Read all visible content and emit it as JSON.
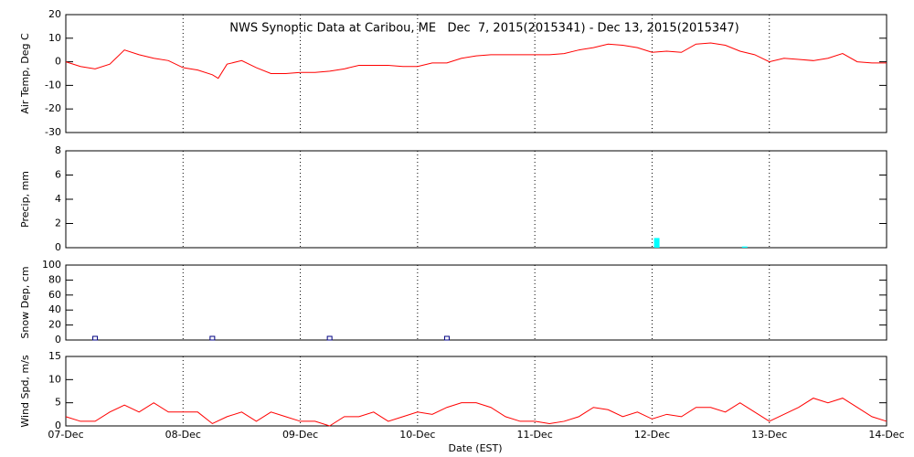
{
  "chart_data": [
    {
      "type": "line",
      "title": "NWS Synoptic Data at Caribou, ME   Dec  7, 2015(2015341) - Dec 13, 2015(2015347)",
      "y_label": "Air Temp, Deg C",
      "ylim": [
        -30,
        20
      ],
      "yticks": [
        -30,
        -20,
        -10,
        0,
        10,
        20
      ],
      "xlim": [
        0,
        7
      ],
      "grid": true,
      "series": [
        {
          "name": "Air Temp",
          "color": "#ff0000",
          "x": [
            0,
            0.125,
            0.25,
            0.375,
            0.5,
            0.625,
            0.75,
            0.875,
            1,
            1.125,
            1.25,
            1.3,
            1.375,
            1.5,
            1.625,
            1.75,
            1.875,
            2,
            2.125,
            2.25,
            2.375,
            2.5,
            2.625,
            2.75,
            2.875,
            3,
            3.125,
            3.25,
            3.375,
            3.5,
            3.625,
            3.75,
            3.875,
            4,
            4.125,
            4.25,
            4.375,
            4.5,
            4.625,
            4.75,
            4.875,
            5,
            5.125,
            5.25,
            5.375,
            5.5,
            5.625,
            5.75,
            5.875,
            6,
            6.125,
            6.25,
            6.375,
            6.5,
            6.625,
            6.75,
            6.875,
            7
          ],
          "values": [
            0,
            -2,
            -3,
            -1,
            5,
            3,
            1.5,
            0.5,
            -2.5,
            -3.5,
            -5.5,
            -7,
            -1,
            0.5,
            -2.5,
            -5,
            -5,
            -4.5,
            -4.5,
            -4,
            -3,
            -1.5,
            -1.5,
            -1.5,
            -2,
            -2,
            -0.5,
            -0.5,
            1.5,
            2.5,
            3,
            3,
            3,
            3,
            3,
            3.5,
            5,
            6,
            7.5,
            7,
            6,
            4,
            4.5,
            4,
            7.5,
            8,
            7,
            4.5,
            3,
            0,
            1.5,
            1,
            0.5,
            1.5,
            3.5,
            0,
            -0.5,
            -0.5
          ]
        }
      ]
    },
    {
      "type": "bar",
      "y_label": "Precip, mm",
      "ylim": [
        0,
        8
      ],
      "yticks": [
        0,
        2,
        4,
        6,
        8
      ],
      "xlim": [
        0,
        7
      ],
      "grid": true,
      "series": [
        {
          "name": "Precip",
          "color": "#00ffff",
          "x": [
            5.04,
            5.79
          ],
          "values": [
            0.8,
            0.1
          ]
        }
      ]
    },
    {
      "type": "scatter",
      "y_label": "Snow Dep, cm",
      "ylim": [
        0,
        100
      ],
      "yticks": [
        0,
        20,
        40,
        60,
        80,
        100
      ],
      "xlim": [
        0,
        7
      ],
      "grid": true,
      "series": [
        {
          "name": "Snow Depth",
          "color": "#000080",
          "x": [
            0.25,
            1.25,
            2.25,
            3.25
          ],
          "values": [
            0,
            0,
            0,
            0
          ]
        }
      ]
    },
    {
      "type": "line",
      "y_label": "Wind Spd, m/s",
      "x_label": "Date (EST)",
      "ylim": [
        0,
        15
      ],
      "yticks": [
        0,
        5,
        10,
        15
      ],
      "xlim": [
        0,
        7
      ],
      "grid": true,
      "xticks": [
        {
          "value": 0,
          "label": "07-Dec"
        },
        {
          "value": 1,
          "label": "08-Dec"
        },
        {
          "value": 2,
          "label": "09-Dec"
        },
        {
          "value": 3,
          "label": "10-Dec"
        },
        {
          "value": 4,
          "label": "11-Dec"
        },
        {
          "value": 5,
          "label": "12-Dec"
        },
        {
          "value": 6,
          "label": "13-Dec"
        },
        {
          "value": 7,
          "label": "14-Dec"
        }
      ],
      "series": [
        {
          "name": "Wind Speed",
          "color": "#ff0000",
          "x": [
            0,
            0.125,
            0.25,
            0.375,
            0.5,
            0.625,
            0.75,
            0.875,
            1,
            1.125,
            1.25,
            1.375,
            1.5,
            1.625,
            1.75,
            1.875,
            2,
            2.125,
            2.25,
            2.375,
            2.5,
            2.625,
            2.75,
            2.875,
            3,
            3.125,
            3.25,
            3.375,
            3.5,
            3.625,
            3.75,
            3.875,
            4,
            4.125,
            4.25,
            4.375,
            4.5,
            4.625,
            4.75,
            4.875,
            5,
            5.125,
            5.25,
            5.375,
            5.5,
            5.625,
            5.75,
            5.875,
            6,
            6.125,
            6.25,
            6.375,
            6.5,
            6.625,
            6.75,
            6.875,
            7
          ],
          "values": [
            2,
            1,
            1,
            3,
            4.5,
            3,
            5,
            3,
            3,
            3,
            0.5,
            2,
            3,
            1,
            3,
            2,
            1,
            1,
            0,
            2,
            2,
            3,
            1,
            2,
            3,
            2.5,
            4,
            5,
            5,
            4,
            2,
            1,
            1,
            0.5,
            1,
            2,
            4,
            3.5,
            2,
            3,
            1.5,
            2.5,
            2,
            4,
            4,
            3,
            5,
            3,
            1,
            2.5,
            4,
            6,
            5,
            6,
            4,
            2,
            1
          ]
        }
      ]
    }
  ]
}
